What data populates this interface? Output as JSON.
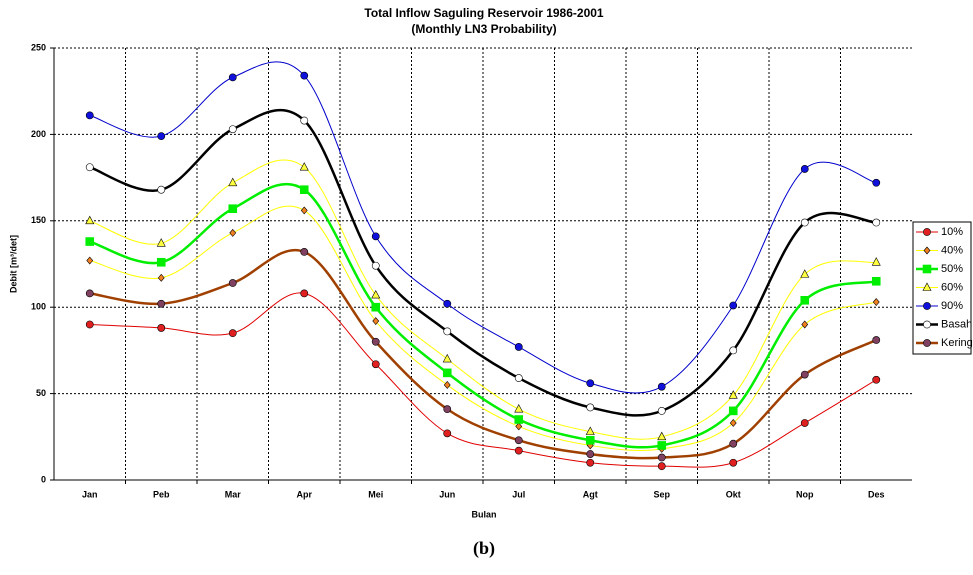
{
  "chart_data": {
    "type": "line",
    "title": "Total Inflow Saguling Reservoir 1986-2001",
    "subtitle": "(Monthly  LN3 Probability)",
    "x_label": "Bulan",
    "y_label": "Debit [m³/det]",
    "caption": "(b)",
    "categories": [
      "Jan",
      "Peb",
      "Mar",
      "Apr",
      "Mei",
      "Jun",
      "Jul",
      "Agt",
      "Sep",
      "Okt",
      "Nop",
      "Des"
    ],
    "ylim": [
      0,
      250
    ],
    "yticks": [
      0,
      50,
      100,
      150,
      200,
      250
    ],
    "grid": true,
    "legend": "right",
    "series": [
      {
        "name": "10%",
        "color": "#e00000",
        "marker": "circle",
        "marker_color": "#e02020",
        "line_width": 1,
        "values": [
          90,
          88,
          85,
          108,
          67,
          27,
          17,
          10,
          8,
          10,
          33,
          58
        ]
      },
      {
        "name": "40%",
        "color": "#ffff00",
        "marker": "diamond",
        "marker_color": "#f08020",
        "line_width": 1,
        "values": [
          127,
          117,
          143,
          156,
          92,
          55,
          31,
          20,
          18,
          33,
          90,
          103
        ]
      },
      {
        "name": "50%",
        "color": "#00ee00",
        "marker": "square",
        "marker_color": "#00ee00",
        "line_width": 2.5,
        "values": [
          138,
          126,
          157,
          168,
          100,
          62,
          35,
          23,
          20,
          40,
          104,
          115
        ]
      },
      {
        "name": "60%",
        "color": "#ffff00",
        "marker": "triangle",
        "marker_color": "#ffff40",
        "line_width": 1,
        "values": [
          150,
          137,
          172,
          181,
          107,
          70,
          41,
          28,
          25,
          49,
          119,
          126
        ]
      },
      {
        "name": "90%",
        "color": "#0000cc",
        "marker": "circle",
        "marker_color": "#1010dd",
        "line_width": 1,
        "values": [
          211,
          199,
          233,
          234,
          141,
          102,
          77,
          56,
          54,
          101,
          180,
          172
        ]
      },
      {
        "name": "Basah",
        "color": "#000000",
        "marker": "circle",
        "marker_color": "#ffffff",
        "line_width": 2.5,
        "values": [
          181,
          168,
          203,
          208,
          124,
          86,
          59,
          42,
          40,
          75,
          149,
          149
        ]
      },
      {
        "name": "Kering",
        "color": "#a04000",
        "marker": "circle",
        "marker_color": "#804060",
        "line_width": 2.5,
        "values": [
          108,
          102,
          114,
          132,
          80,
          41,
          23,
          15,
          13,
          21,
          61,
          81
        ]
      }
    ]
  }
}
